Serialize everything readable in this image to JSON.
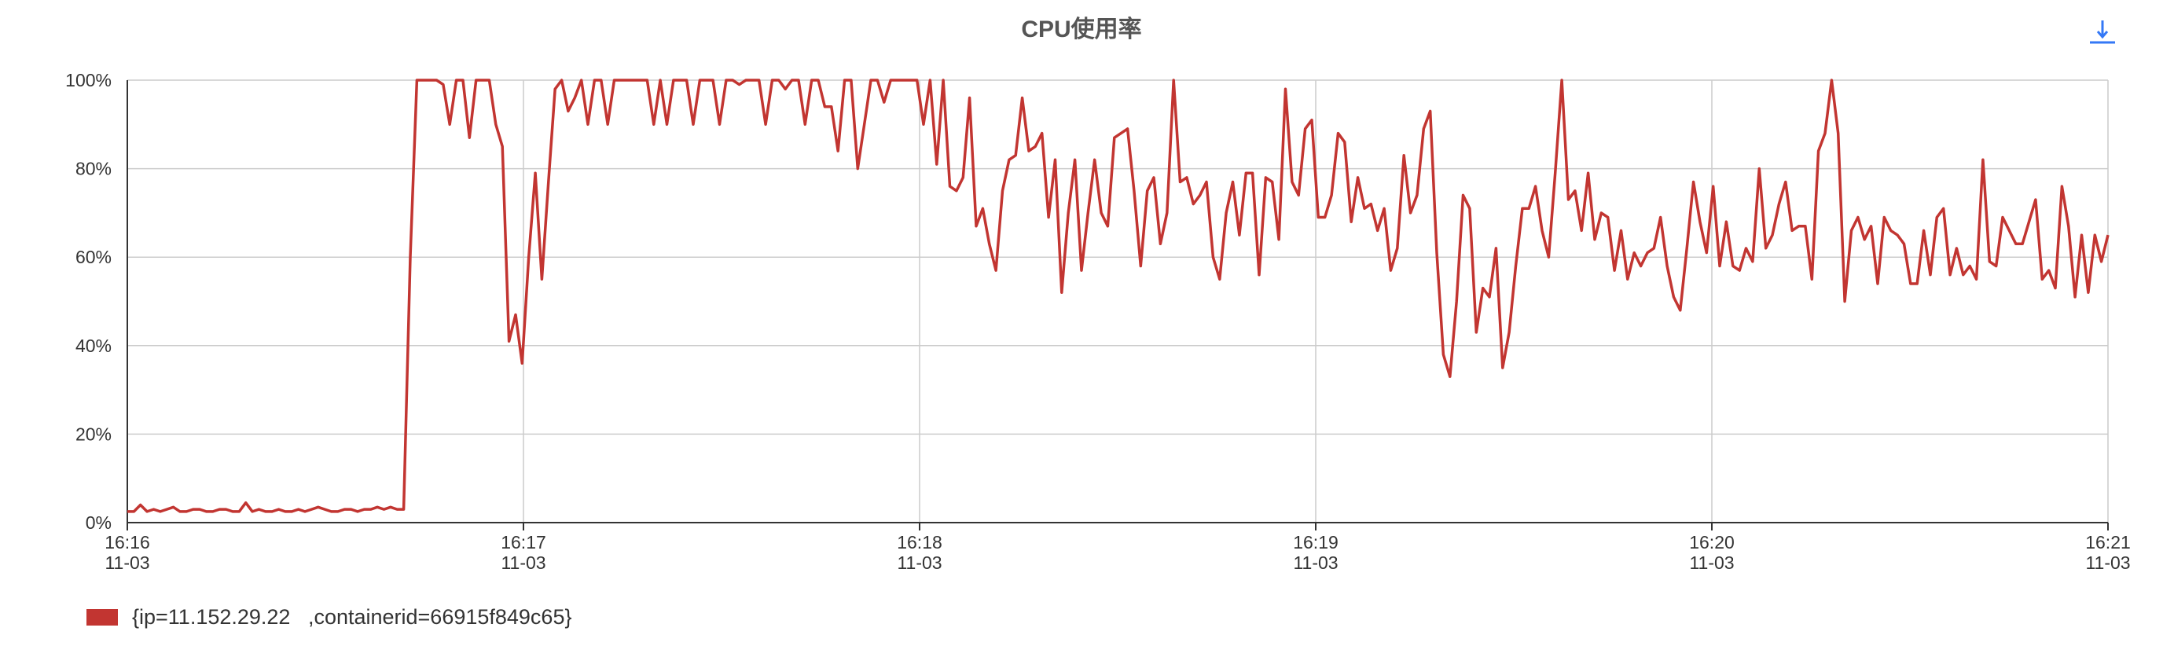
{
  "title": "CPU使用率",
  "toolbar": {
    "download_icon": "download-arrow-icon"
  },
  "colors": {
    "series": "#c23531",
    "grid": "#cccccc",
    "axis": "#333333",
    "accent": "#3478f6"
  },
  "chart_data": {
    "type": "line",
    "title": "CPU使用率",
    "xlabel": "",
    "ylabel": "",
    "ylim": [
      0,
      100
    ],
    "yticks": [
      "0%",
      "20%",
      "40%",
      "60%",
      "80%",
      "100%"
    ],
    "xticks": [
      {
        "time": "16:16",
        "date": "11-03"
      },
      {
        "time": "16:17",
        "date": "11-03"
      },
      {
        "time": "16:18",
        "date": "11-03"
      },
      {
        "time": "16:19",
        "date": "11-03"
      },
      {
        "time": "16:20",
        "date": "11-03"
      },
      {
        "time": "16:21",
        "date": "11-03"
      }
    ],
    "x_start": "16:16",
    "x_end": "16:21",
    "grid": true,
    "legend_position": "bottom-left",
    "series": [
      {
        "name": "{ip=11.152.29.22   ,containerid=66915f849c65}",
        "values": [
          2.5,
          2.5,
          4,
          2.5,
          3,
          2.5,
          3,
          3.5,
          2.5,
          2.5,
          3,
          3,
          2.5,
          2.5,
          3,
          3,
          2.5,
          2.5,
          4.5,
          2.5,
          3,
          2.5,
          2.5,
          3,
          2.5,
          2.5,
          3,
          2.5,
          3,
          3.5,
          3,
          2.5,
          2.5,
          3,
          3,
          2.5,
          3,
          3,
          3.5,
          3,
          3.5,
          3,
          3,
          60,
          100,
          100,
          100,
          100,
          99,
          90,
          100,
          100,
          87,
          100,
          100,
          100,
          90,
          85,
          41,
          47,
          36,
          60,
          79,
          55,
          77,
          98,
          100,
          93,
          96,
          100,
          90,
          100,
          100,
          90,
          100,
          100,
          100,
          100,
          100,
          100,
          90,
          100,
          90,
          100,
          100,
          100,
          90,
          100,
          100,
          100,
          90,
          100,
          100,
          99,
          100,
          100,
          100,
          90,
          100,
          100,
          98,
          100,
          100,
          90,
          100,
          100,
          94,
          94,
          84,
          100,
          100,
          80,
          90,
          100,
          100,
          95,
          100,
          100,
          100,
          100,
          100,
          90,
          100,
          81,
          100,
          76,
          75,
          78,
          96,
          67,
          71,
          63,
          57,
          75,
          82,
          83,
          96,
          84,
          85,
          88,
          69,
          82,
          52,
          70,
          82,
          57,
          70,
          82,
          70,
          67,
          87,
          88,
          89,
          75,
          58,
          75,
          78,
          63,
          70,
          100,
          77,
          78,
          72,
          74,
          77,
          60,
          55,
          70,
          77,
          65,
          79,
          79,
          56,
          78,
          77,
          64,
          98,
          77,
          74,
          89,
          91,
          69,
          69,
          74,
          88,
          86,
          68,
          78,
          71,
          72,
          66,
          71,
          57,
          62,
          83,
          70,
          74,
          89,
          93,
          61,
          38,
          33,
          50,
          74,
          71,
          43,
          53,
          51,
          62,
          35,
          43,
          58,
          71,
          71,
          76,
          66,
          60,
          79,
          100,
          73,
          75,
          66,
          79,
          64,
          70,
          69,
          57,
          66,
          55,
          61,
          58,
          61,
          62,
          69,
          58,
          51,
          48,
          62,
          77,
          68,
          61,
          76,
          58,
          68,
          58,
          57,
          62,
          59,
          80,
          62,
          65,
          72,
          77,
          66,
          67,
          67,
          55,
          84,
          88,
          100,
          88,
          50,
          66,
          69,
          64,
          67,
          54,
          69,
          66,
          65,
          63,
          54,
          54,
          66,
          56,
          69,
          71,
          56,
          62,
          56,
          58,
          55,
          82,
          59,
          58,
          69,
          66,
          63,
          63,
          68,
          73,
          55,
          57,
          53,
          76,
          67,
          51,
          65,
          52,
          65,
          59,
          65
        ]
      }
    ]
  },
  "legend": {
    "label": "{ip=11.152.29.22   ,containerid=66915f849c65}"
  }
}
